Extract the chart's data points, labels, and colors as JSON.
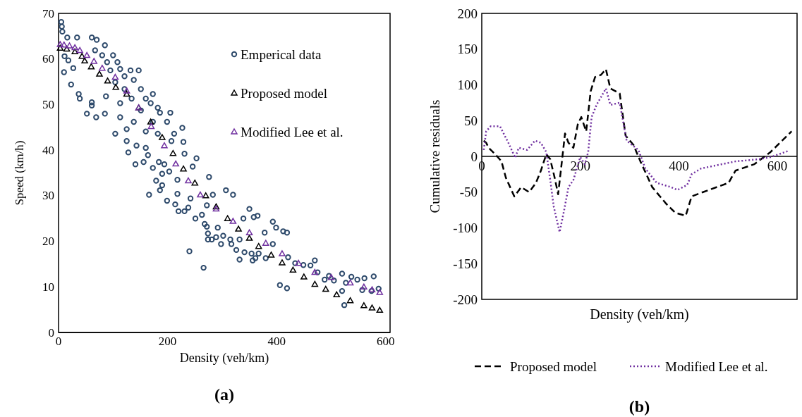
{
  "chart_data": [
    {
      "type": "scatter",
      "xlabel": "Density (veh/km)",
      "ylabel": "Speed (km/h)",
      "xlim": [
        0,
        608
      ],
      "ylim": [
        0,
        70
      ],
      "xticks": [
        0,
        200,
        400,
        600
      ],
      "yticks": [
        0,
        10,
        20,
        30,
        40,
        50,
        60,
        70
      ],
      "legend": "top right",
      "annotations": [
        "(a)"
      ],
      "series": [
        {
          "name": "Emperical data",
          "marker": "circle",
          "color": "#2e4a6b",
          "x": [
            5,
            6,
            7,
            16,
            34,
            61,
            70,
            85,
            11,
            18,
            27,
            10,
            23,
            37,
            39,
            61,
            61,
            52,
            69,
            85,
            67,
            80,
            100,
            89,
            108,
            113,
            132,
            147,
            95,
            121,
            138,
            104,
            87,
            121,
            151,
            173,
            160,
            134,
            113,
            169,
            182,
            151,
            186,
            205,
            113,
            138,
            173,
            199,
            125,
            104,
            160,
            182,
            212,
            227,
            207,
            229,
            125,
            143,
            160,
            128,
            164,
            231,
            156,
            141,
            173,
            184,
            194,
            253,
            246,
            203,
            190,
            179,
            218,
            166,
            190,
            186,
            199,
            214,
            218,
            242,
            276,
            307,
            320,
            283,
            272,
            220,
            231,
            238,
            251,
            263,
            268,
            272,
            292,
            274,
            274,
            281,
            289,
            302,
            315,
            298,
            317,
            326,
            332,
            341,
            332,
            339,
            350,
            358,
            365,
            378,
            393,
            399,
            412,
            419,
            393,
            354,
            361,
            367,
            380,
            356,
            240,
            266,
            406,
            419,
            421,
            434,
            449,
            462,
            470,
            475,
            488,
            505,
            520,
            520,
            524,
            537,
            548,
            561,
            578,
            557,
            574,
            587,
            496,
            527
          ],
          "values": [
            68.1,
            67.1,
            66.0,
            64.7,
            64.7,
            64.7,
            64.2,
            63.0,
            60.6,
            59.7,
            58.0,
            57.1,
            54.4,
            52.3,
            51.3,
            50.5,
            49.8,
            48.0,
            47.2,
            48.0,
            61.9,
            60.8,
            60.8,
            59.3,
            59.3,
            57.8,
            57.5,
            57.5,
            57.5,
            56.2,
            55.4,
            54.9,
            51.8,
            53.4,
            53.4,
            52.3,
            51.3,
            51.3,
            50.3,
            50.3,
            49.3,
            48.7,
            48.2,
            48.2,
            47.2,
            46.2,
            46.2,
            46.2,
            44.6,
            43.6,
            44.1,
            43.6,
            43.6,
            44.9,
            42.0,
            41.8,
            42.0,
            41.0,
            40.5,
            39.5,
            38.9,
            39.2,
            37.4,
            36.9,
            36.1,
            37.4,
            36.9,
            38.2,
            36.4,
            35.3,
            34.8,
            33.3,
            33.5,
            30.2,
            32.3,
            31.2,
            28.9,
            28.1,
            30.4,
            29.4,
            34.1,
            31.2,
            30.2,
            30.2,
            27.9,
            26.6,
            26.6,
            27.4,
            25.0,
            25.8,
            23.8,
            23.2,
            23.0,
            21.7,
            20.4,
            20.4,
            20.9,
            21.2,
            20.4,
            19.4,
            19.4,
            18.1,
            20.4,
            17.6,
            16.0,
            25.0,
            27.1,
            25.3,
            25.6,
            21.9,
            24.3,
            23.0,
            22.2,
            21.9,
            19.4,
            17.3,
            16.3,
            17.3,
            16.3,
            15.8,
            17.8,
            14.2,
            10.4,
            9.7,
            16.5,
            15.2,
            14.8,
            14.7,
            15.8,
            13.2,
            11.6,
            11.4,
            12.9,
            9.1,
            6.0,
            12.2,
            11.6,
            11.9,
            12.3,
            9.3,
            9.1,
            9.6,
            12.4,
            10.9
          ]
        },
        {
          "name": "Proposed model",
          "marker": "triangle",
          "color": "#000000",
          "x": [
            3,
            15,
            30,
            43,
            48,
            60,
            75,
            90,
            105,
            125,
            147,
            169,
            190,
            210,
            229,
            250,
            270,
            289,
            310,
            330,
            350,
            367,
            390,
            410,
            430,
            450,
            470,
            490,
            510,
            535,
            560,
            575,
            589
          ],
          "values": [
            62.4,
            62.2,
            61.6,
            60.6,
            59.6,
            58.3,
            56.7,
            55.2,
            53.8,
            52.3,
            49.3,
            46.2,
            42.8,
            39.3,
            35.9,
            32.8,
            30.0,
            27.6,
            25.0,
            22.7,
            20.7,
            18.9,
            17.0,
            15.3,
            13.7,
            12.2,
            10.6,
            9.5,
            8.3,
            7.0,
            5.9,
            5.4,
            4.9
          ]
        },
        {
          "name": "Modified Lee et al.",
          "marker": "triangle",
          "color": "#7030a0",
          "x": [
            3,
            10,
            20,
            30,
            39,
            52,
            65,
            80,
            104,
            125,
            147,
            170,
            194,
            215,
            238,
            260,
            289,
            320,
            350,
            380,
            410,
            440,
            470,
            500,
            535,
            560,
            575,
            589
          ],
          "values": [
            63.2,
            63.1,
            62.9,
            62.5,
            61.9,
            60.8,
            59.5,
            58.0,
            56.0,
            53.0,
            49.3,
            45.2,
            41.0,
            37.0,
            33.3,
            30.2,
            27.1,
            24.4,
            21.9,
            19.6,
            17.3,
            15.2,
            13.2,
            12.1,
            10.9,
            10.0,
            9.4,
            8.8
          ]
        }
      ]
    },
    {
      "type": "line",
      "xlabel": "Density (veh/km)",
      "ylabel": "Cumulative residuals",
      "xlim": [
        0,
        640
      ],
      "ylim": [
        -200,
        200
      ],
      "xticks": [
        0,
        200,
        400,
        600
      ],
      "yticks": [
        -200,
        -150,
        -100,
        -50,
        0,
        50,
        100,
        150,
        200
      ],
      "legend": "bottom",
      "annotations": [
        "(b)"
      ],
      "series": [
        {
          "name": "Proposed model",
          "line_style": "dashed",
          "color": "#000000",
          "x": [
            4,
            9,
            14,
            30,
            40,
            49,
            66,
            80,
            96,
            110,
            120,
            131,
            139,
            148,
            155,
            162,
            169,
            176,
            186,
            195,
            202,
            212,
            221,
            230,
            242,
            252,
            261,
            280,
            292,
            308,
            322,
            346,
            374,
            393,
            414,
            426,
            449,
            501,
            515,
            553,
            586,
            629
          ],
          "values": [
            22,
            19,
            12,
            1,
            -7,
            -30,
            -56,
            -43,
            -50,
            -37,
            -20,
            3,
            -4,
            -30,
            -53,
            -11,
            32,
            19,
            12,
            45,
            55,
            35,
            91,
            111,
            114,
            122,
            95,
            88,
            29,
            16,
            -7,
            -43,
            -66,
            -79,
            -83,
            -56,
            -50,
            -37,
            -20,
            -11,
            6,
            35
          ]
        },
        {
          "name": "Modified Lee et al.",
          "line_style": "dotted",
          "color": "#7030a0",
          "x": [
            4,
            9,
            18,
            37,
            54,
            68,
            75,
            92,
            108,
            120,
            131,
            139,
            146,
            158,
            167,
            176,
            186,
            200,
            209,
            216,
            223,
            233,
            252,
            261,
            280,
            294,
            318,
            332,
            355,
            384,
            397,
            417,
            426,
            445,
            515,
            563,
            586,
            624
          ],
          "values": [
            9,
            35,
            42,
            42,
            19,
            -2,
            12,
            9,
            22,
            19,
            6,
            -33,
            -70,
            -106,
            -76,
            -43,
            -33,
            -1,
            -11,
            6,
            55,
            72,
            95,
            72,
            75,
            22,
            9,
            -17,
            -37,
            -43,
            -47,
            -40,
            -25,
            -17,
            -7,
            -4,
            -1,
            8
          ]
        }
      ]
    }
  ]
}
